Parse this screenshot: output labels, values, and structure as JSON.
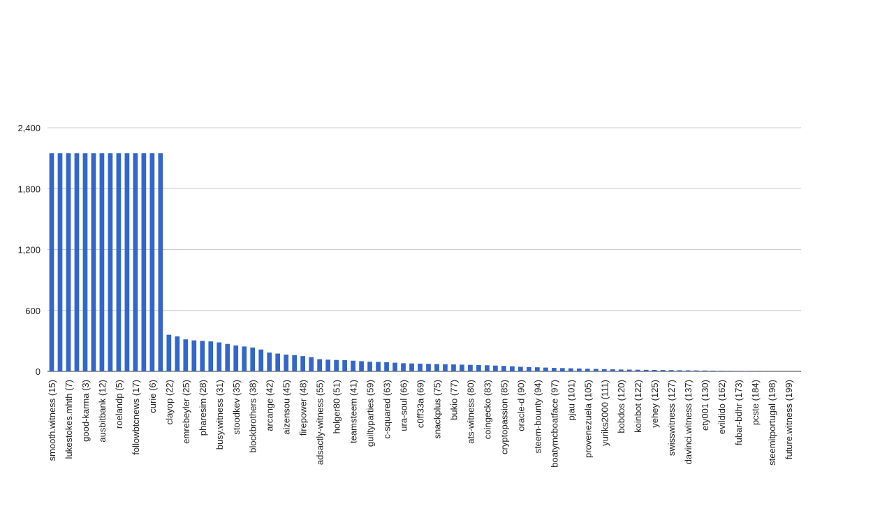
{
  "chart_data": {
    "type": "bar",
    "color": "#3366cc",
    "grid": true,
    "ylim": [
      0,
      2400
    ],
    "yticks": [
      0,
      {
        "value": 600,
        "label": "600"
      },
      {
        "value": 1200,
        "label": "1,200"
      },
      {
        "value": 1800,
        "label": "1,800"
      },
      {
        "value": 2400,
        "label": "2,400"
      }
    ],
    "categories": [
      "smooth.witness (15)",
      null,
      "lukestokes.mhth (7)",
      null,
      "good-karma (3)",
      null,
      "ausbitbank (12)",
      null,
      "roelandp (5)",
      null,
      "followbtcnews (17)",
      null,
      "curie (6)",
      null,
      "clayop (22)",
      null,
      "emrebeyler (25)",
      null,
      "pharesim (28)",
      null,
      "busy.witness (31)",
      null,
      "stoodkev (35)",
      null,
      "blockbrothers (38)",
      null,
      "arcange (42)",
      null,
      "aizensou (45)",
      null,
      "firepower (48)",
      null,
      "adsactly-witness (55)",
      null,
      "holger80 (51)",
      null,
      "teamsteem (41)",
      null,
      "guiltyparties (59)",
      null,
      "c-squared (63)",
      null,
      "ura-soul (66)",
      null,
      "c0ff33a (69)",
      null,
      "snackplus (75)",
      null,
      "bukio (77)",
      null,
      "ats-witness (80)",
      null,
      "coingecko (83)",
      null,
      "cryptopassion (85)",
      null,
      "oracle-d (90)",
      null,
      "steem-bounty (94)",
      null,
      "boatymcboatface (97)",
      null,
      "pjau (101)",
      null,
      "provenezuela (105)",
      null,
      "yuriks2000 (111)",
      null,
      "bobdos (120)",
      null,
      "koinbot (122)",
      null,
      "yehey (125)",
      null,
      "swisswitness (127)",
      null,
      "davinci.witness (137)",
      null,
      "ety001 (130)",
      null,
      "evildido (162)",
      null,
      "fubar-bdhr (173)",
      null,
      "pcste (184)",
      null,
      "steemitportugal (198)",
      null,
      "future.witness (199)",
      null
    ],
    "values": [
      2150,
      2150,
      2150,
      2150,
      2150,
      2150,
      2150,
      2150,
      2150,
      2150,
      2150,
      2150,
      2150,
      2150,
      360,
      345,
      315,
      305,
      300,
      295,
      285,
      270,
      255,
      245,
      235,
      215,
      185,
      175,
      165,
      160,
      150,
      140,
      120,
      115,
      112,
      110,
      105,
      100,
      95,
      93,
      90,
      85,
      80,
      78,
      76,
      74,
      72,
      70,
      68,
      66,
      64,
      62,
      60,
      57,
      54,
      50,
      45,
      42,
      40,
      37,
      34,
      32,
      30,
      28,
      26,
      24,
      22,
      20,
      18,
      17,
      16,
      15,
      14,
      13,
      12,
      11,
      10,
      9,
      8,
      7,
      6,
      5,
      4,
      3,
      2,
      2,
      1,
      1,
      1,
      1
    ]
  }
}
